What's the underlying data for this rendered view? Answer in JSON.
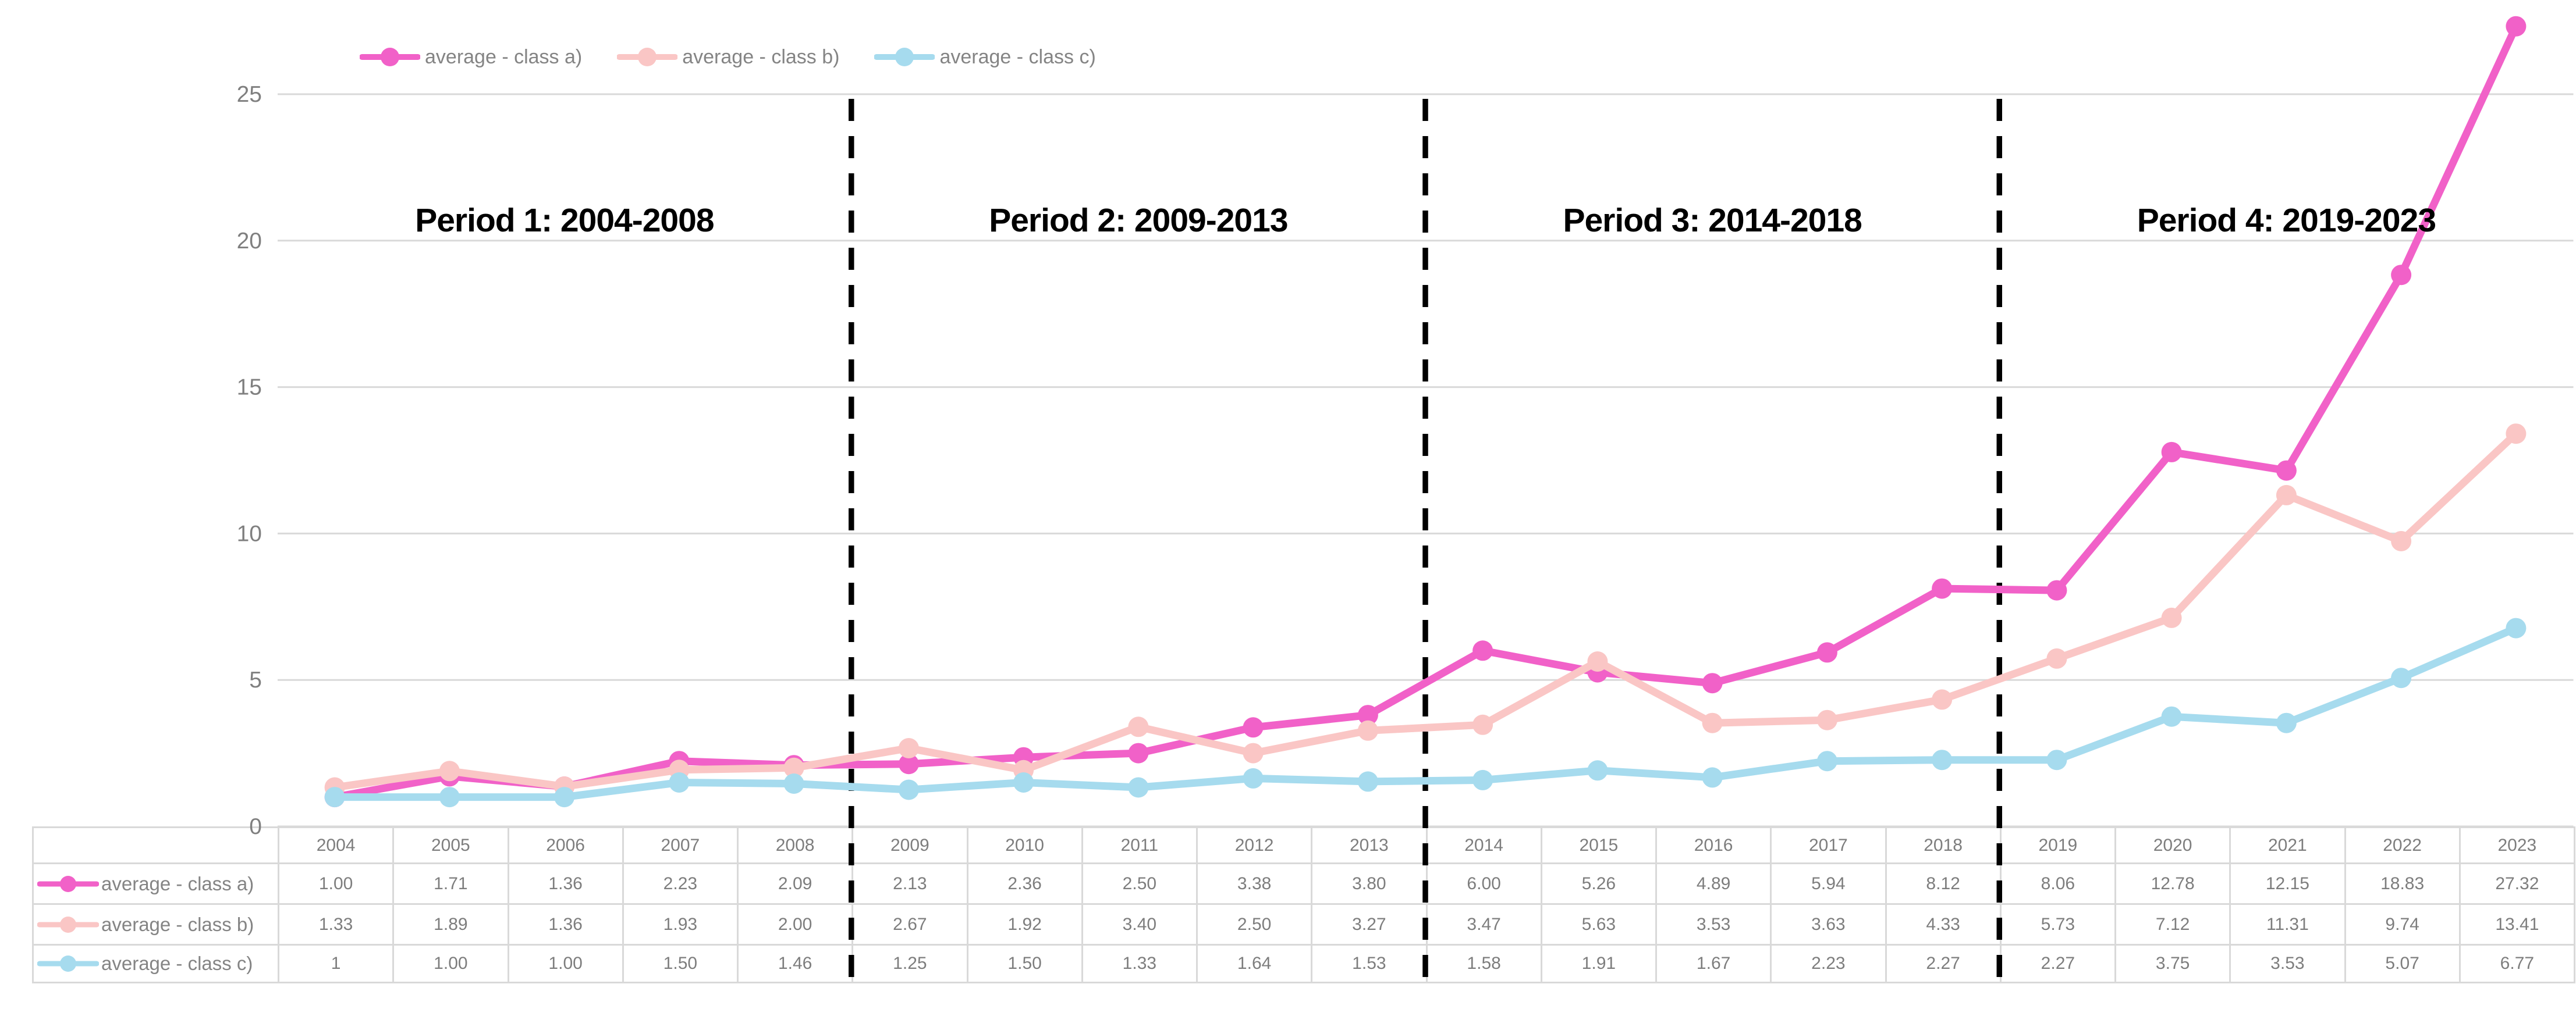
{
  "chart_data": {
    "type": "line",
    "title": "",
    "categories": [
      "2004",
      "2005",
      "2006",
      "2007",
      "2008",
      "2009",
      "2010",
      "2011",
      "2012",
      "2013",
      "2014",
      "2015",
      "2016",
      "2017",
      "2018",
      "2019",
      "2020",
      "2021",
      "2022",
      "2023"
    ],
    "series": [
      {
        "name": "average - class a)",
        "color": "#f161c8",
        "values": [
          1.0,
          1.71,
          1.36,
          2.23,
          2.09,
          2.13,
          2.36,
          2.5,
          3.38,
          3.8,
          6.0,
          5.26,
          4.89,
          5.94,
          8.12,
          8.06,
          12.78,
          12.15,
          18.83,
          27.32
        ],
        "display": [
          "1.00",
          "1.71",
          "1.36",
          "2.23",
          "2.09",
          "2.13",
          "2.36",
          "2.50",
          "3.38",
          "3.80",
          "6.00",
          "5.26",
          "4.89",
          "5.94",
          "8.12",
          "8.06",
          "12.78",
          "12.15",
          "18.83",
          "27.32"
        ]
      },
      {
        "name": "average - class b)",
        "color": "#fac6c5",
        "values": [
          1.33,
          1.89,
          1.36,
          1.93,
          2.0,
          2.67,
          1.92,
          3.4,
          2.5,
          3.27,
          3.47,
          5.63,
          3.53,
          3.63,
          4.33,
          5.73,
          7.12,
          11.31,
          9.74,
          13.41
        ],
        "display": [
          "1.33",
          "1.89",
          "1.36",
          "1.93",
          "2.00",
          "2.67",
          "1.92",
          "3.40",
          "2.50",
          "3.27",
          "3.47",
          "5.63",
          "3.53",
          "3.63",
          "4.33",
          "5.73",
          "7.12",
          "11.31",
          "9.74",
          "13.41"
        ]
      },
      {
        "name": "average - class c)",
        "color": "#a6dbee",
        "values": [
          1,
          1.0,
          1.0,
          1.5,
          1.46,
          1.25,
          1.5,
          1.33,
          1.64,
          1.53,
          1.58,
          1.91,
          1.67,
          2.23,
          2.27,
          2.27,
          3.75,
          3.53,
          5.07,
          6.77
        ],
        "display": [
          "1",
          "1.00",
          "1.00",
          "1.50",
          "1.46",
          "1.25",
          "1.50",
          "1.33",
          "1.64",
          "1.53",
          "1.58",
          "1.91",
          "1.67",
          "2.23",
          "2.27",
          "2.27",
          "3.75",
          "3.53",
          "5.07",
          "6.77"
        ]
      }
    ],
    "ylim": [
      0,
      25
    ],
    "yticks": [
      "0",
      "5",
      "10",
      "15",
      "20",
      "25"
    ],
    "grid": true,
    "legend_position": "top",
    "annotations": {
      "period_labels": [
        "Period 1: 2004-2008",
        "Period 2: 2009-2013",
        "Period 3: 2014-2018",
        "Period 4: 2019-2023"
      ],
      "separators_after_category": [
        "2008",
        "2013",
        "2018"
      ]
    },
    "data_table_shown": true
  },
  "colors": {
    "background": "#ffffff",
    "grid": "#d9d9d9",
    "table_border": "#d9d9d9",
    "axis_text": "#7f7f7f",
    "table_text": "#7d7d7d",
    "legend_text": "#848484",
    "period_label": "#000000",
    "separator": "#000000"
  }
}
